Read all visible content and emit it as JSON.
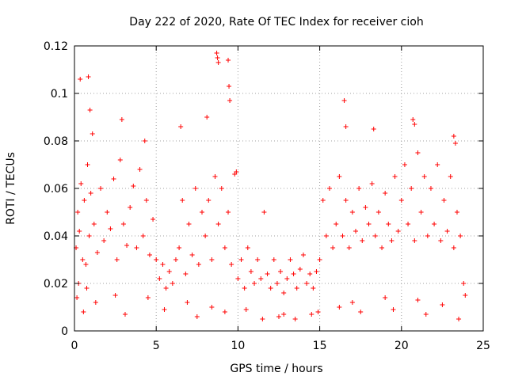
{
  "chart_data": {
    "type": "scatter",
    "title": "Day 222 of 2020, Rate Of TEC Index for receiver cioh",
    "xlabel": "GPS time / hours",
    "ylabel": "ROTI / TECUs",
    "xlim": [
      0,
      25
    ],
    "ylim": [
      0,
      0.12
    ],
    "x_ticks": [
      0,
      5,
      10,
      15,
      20,
      25
    ],
    "x_tick_labels": [
      "0",
      "5",
      "10",
      "15",
      "20",
      "25"
    ],
    "y_ticks": [
      0,
      0.02,
      0.04,
      0.06,
      0.08,
      0.1,
      0.12
    ],
    "y_tick_labels": [
      "0",
      "0.02",
      "0.04",
      "0.06",
      "0.08",
      "0.1",
      "0.12"
    ],
    "grid": true,
    "marker": "plus",
    "color": "#ff0000",
    "series": [
      {
        "x": [
          0.1,
          0.2,
          0.3,
          0.4,
          0.5,
          0.6,
          0.7,
          0.8,
          0.9,
          1.0,
          1.2,
          1.4,
          1.6,
          1.8,
          2.0,
          2.2,
          2.4,
          2.6,
          2.8,
          3.0,
          3.2,
          3.4,
          3.6,
          3.8,
          4.0,
          4.2,
          4.4,
          4.6,
          4.8,
          5.0,
          5.2,
          5.4,
          5.6,
          5.8,
          6.0,
          6.2,
          6.4,
          6.6,
          6.8,
          7.0,
          7.2,
          7.4,
          7.6,
          7.8,
          8.0,
          8.2,
          8.4,
          8.6,
          8.8,
          9.0,
          9.2,
          9.4,
          9.6,
          9.8,
          10.0,
          10.2,
          10.4,
          10.6,
          10.8,
          11.0,
          11.2,
          11.4,
          11.6,
          11.8,
          12.0,
          12.2,
          12.4,
          12.6,
          12.8,
          13.0,
          13.2,
          13.4,
          13.6,
          13.8,
          14.0,
          14.2,
          14.4,
          14.6,
          14.8,
          15.0,
          15.2,
          15.4,
          15.6,
          15.8,
          16.0,
          16.2,
          16.4,
          16.6,
          16.8,
          17.0,
          17.2,
          17.4,
          17.6,
          17.8,
          18.0,
          18.2,
          18.4,
          18.6,
          18.8,
          19.0,
          19.2,
          19.4,
          19.6,
          19.8,
          20.0,
          20.2,
          20.4,
          20.6,
          20.8,
          21.0,
          21.2,
          21.4,
          21.6,
          21.8,
          22.0,
          22.2,
          22.4,
          22.6,
          22.8,
          23.0,
          23.2,
          23.4,
          23.6,
          23.8,
          0.35,
          0.85,
          0.95,
          1.1,
          2.9,
          4.3,
          6.5,
          8.1,
          8.7,
          8.75,
          8.8,
          9.4,
          9.45,
          9.5,
          9.9,
          16.5,
          16.6,
          18.3,
          20.7,
          20.8,
          23.2,
          23.3,
          0.15,
          0.55,
          1.3,
          3.1,
          5.5,
          7.5,
          9.2,
          11.5,
          12.5,
          13.5,
          14.5,
          16.2,
          17.5,
          19.5,
          21.5,
          23.5,
          0.25,
          0.75,
          2.5,
          4.5,
          6.9,
          8.4,
          10.5,
          12.8,
          14.9,
          17.0,
          19.0,
          21.0,
          22.5,
          23.9
        ],
        "y": [
          0.035,
          0.05,
          0.042,
          0.062,
          0.03,
          0.055,
          0.028,
          0.07,
          0.04,
          0.058,
          0.045,
          0.033,
          0.06,
          0.038,
          0.05,
          0.043,
          0.064,
          0.03,
          0.072,
          0.045,
          0.036,
          0.052,
          0.061,
          0.035,
          0.068,
          0.04,
          0.055,
          0.032,
          0.047,
          0.03,
          0.022,
          0.028,
          0.018,
          0.025,
          0.02,
          0.03,
          0.035,
          0.055,
          0.024,
          0.045,
          0.032,
          0.06,
          0.028,
          0.05,
          0.04,
          0.055,
          0.03,
          0.065,
          0.045,
          0.06,
          0.035,
          0.05,
          0.028,
          0.066,
          0.022,
          0.03,
          0.018,
          0.035,
          0.025,
          0.02,
          0.03,
          0.022,
          0.05,
          0.024,
          0.018,
          0.03,
          0.02,
          0.025,
          0.016,
          0.022,
          0.03,
          0.024,
          0.018,
          0.026,
          0.032,
          0.02,
          0.024,
          0.018,
          0.025,
          0.03,
          0.055,
          0.04,
          0.06,
          0.035,
          0.045,
          0.065,
          0.04,
          0.055,
          0.035,
          0.05,
          0.042,
          0.06,
          0.038,
          0.052,
          0.045,
          0.062,
          0.04,
          0.05,
          0.035,
          0.058,
          0.045,
          0.038,
          0.065,
          0.042,
          0.055,
          0.07,
          0.045,
          0.06,
          0.038,
          0.075,
          0.05,
          0.065,
          0.04,
          0.06,
          0.045,
          0.07,
          0.038,
          0.055,
          0.042,
          0.065,
          0.035,
          0.05,
          0.04,
          0.02,
          0.106,
          0.107,
          0.093,
          0.083,
          0.089,
          0.08,
          0.086,
          0.09,
          0.117,
          0.115,
          0.113,
          0.114,
          0.103,
          0.097,
          0.067,
          0.097,
          0.086,
          0.085,
          0.089,
          0.087,
          0.082,
          0.079,
          0.014,
          0.008,
          0.012,
          0.007,
          0.009,
          0.006,
          0.008,
          0.005,
          0.006,
          0.005,
          0.007,
          0.01,
          0.008,
          0.009,
          0.007,
          0.005,
          0.02,
          0.018,
          0.015,
          0.014,
          0.012,
          0.01,
          0.009,
          0.007,
          0.008,
          0.012,
          0.014,
          0.013,
          0.011,
          0.015
        ]
      }
    ]
  }
}
